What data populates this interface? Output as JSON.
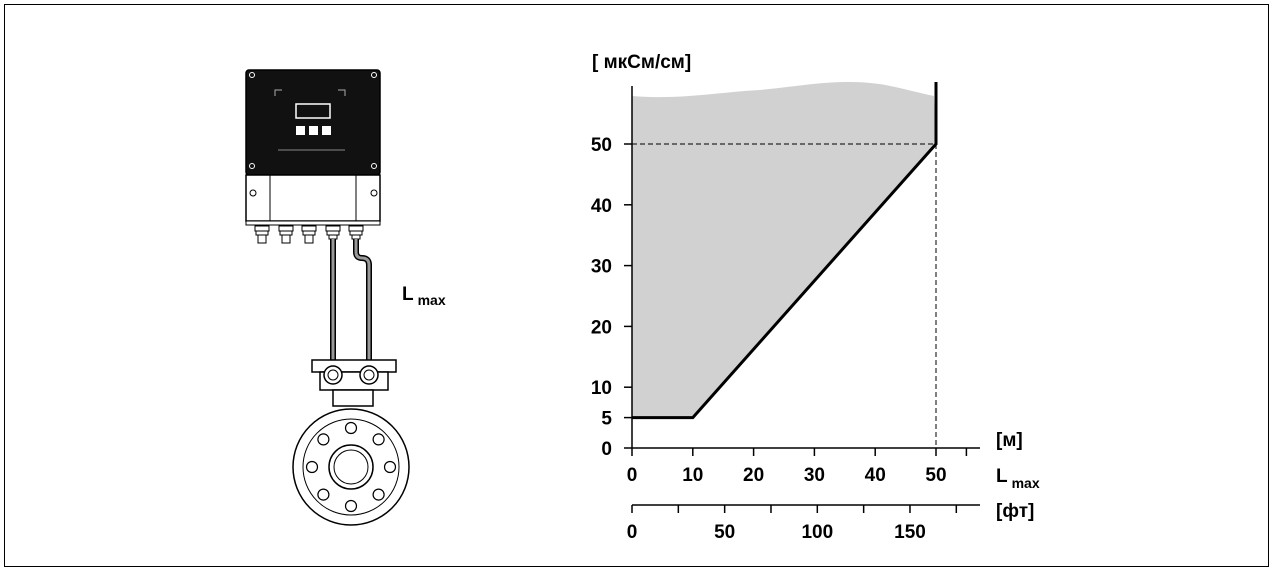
{
  "device_label": {
    "main": "L",
    "sub": "max"
  },
  "chart_data": {
    "type": "area",
    "ylabel": "[ мкСм/см]",
    "ylim": [
      0,
      60
    ],
    "xlim": [
      0,
      50
    ],
    "y_ticks": [
      0,
      5,
      10,
      20,
      30,
      40,
      50
    ],
    "x_ticks_m": [
      0,
      10,
      20,
      30,
      40,
      50
    ],
    "x_unit_m": "[м]",
    "x_label": {
      "main": "L",
      "sub": "max"
    },
    "x_ticks_ft": [
      0,
      50,
      100,
      150
    ],
    "x_unit_ft": "[фт]",
    "boundary_line": {
      "x": [
        0,
        10,
        50,
        50
      ],
      "y": [
        5,
        5,
        50,
        60
      ]
    },
    "reference_line": {
      "x": 50,
      "y": 50
    },
    "shaded_region": "allowed operating range (above boundary line)",
    "colors": {
      "shade": "#d1d1d1",
      "line": "#000000"
    }
  }
}
